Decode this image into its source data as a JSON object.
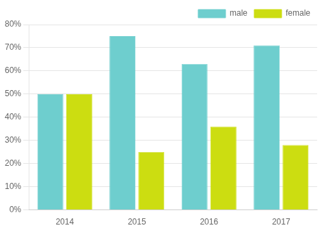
{
  "chart_data": {
    "type": "bar",
    "categories": [
      "2014",
      "2015",
      "2016",
      "2017"
    ],
    "series": [
      {
        "name": "male",
        "color": "#6ECECE",
        "values": [
          0.5,
          0.75,
          0.63,
          0.71
        ]
      },
      {
        "name": "female",
        "color": "#CCDD11",
        "values": [
          0.5,
          0.25,
          0.36,
          0.28
        ]
      }
    ],
    "ylim": [
      0,
      0.8
    ],
    "yticks": [
      {
        "value": 0.0,
        "label": "0%"
      },
      {
        "value": 0.1,
        "label": "10%"
      },
      {
        "value": 0.2,
        "label": "20%"
      },
      {
        "value": 0.3,
        "label": "30%"
      },
      {
        "value": 0.4,
        "label": "40%"
      },
      {
        "value": 0.5,
        "label": "50%"
      },
      {
        "value": 0.6,
        "label": "60%"
      },
      {
        "value": 0.7,
        "label": "70%"
      },
      {
        "value": 0.8,
        "label": "80%"
      }
    ],
    "grid": true,
    "legend": "upper right"
  }
}
